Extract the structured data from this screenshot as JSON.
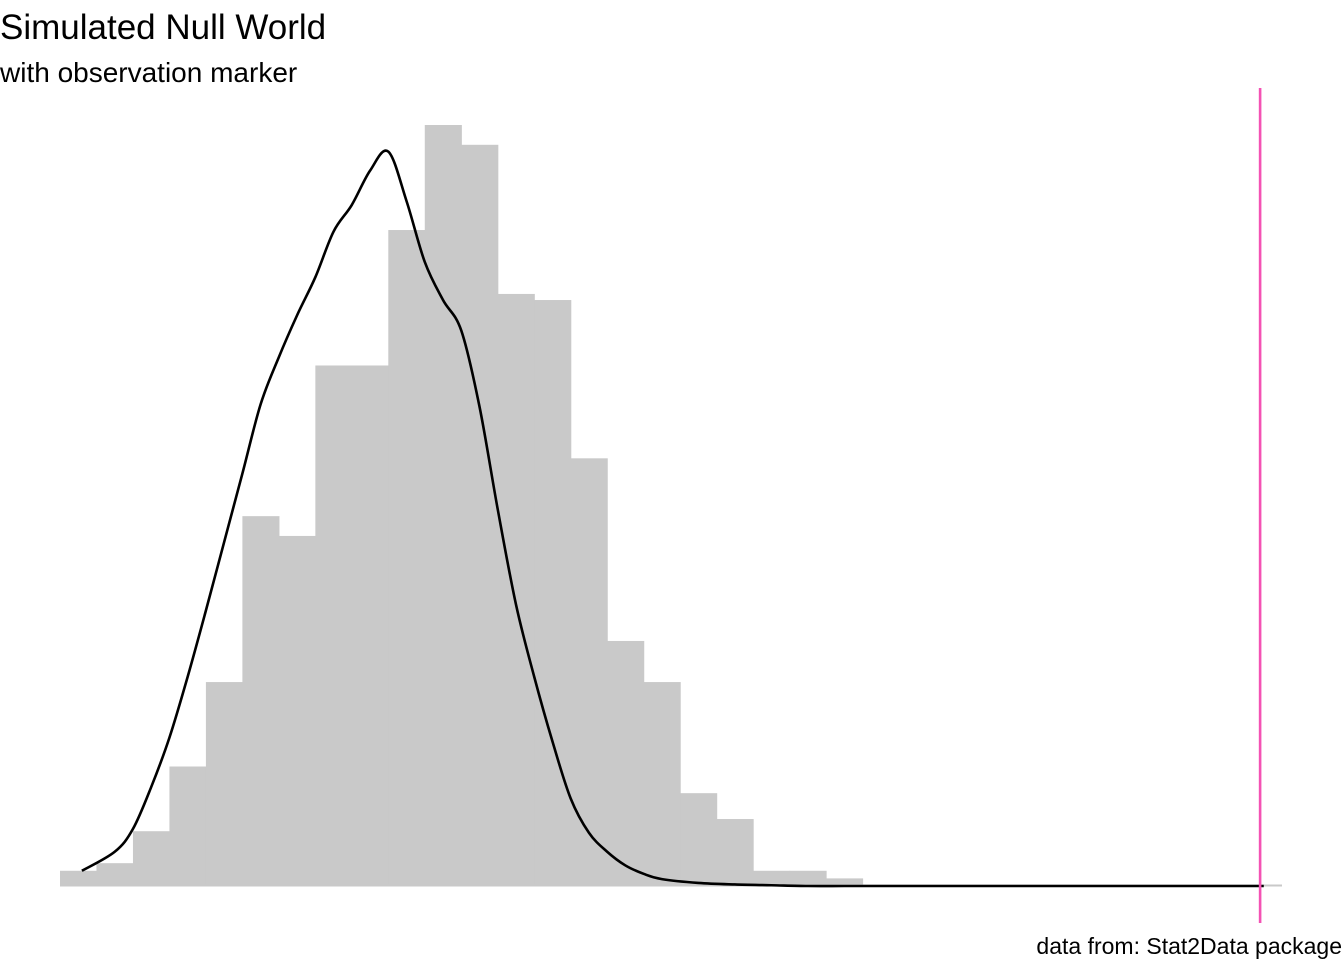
{
  "chart_data": {
    "type": "histogram",
    "title": "Simulated Null World",
    "subtitle": "with observation marker",
    "caption": "data from: Stat2Data package",
    "xlim": [
      -0.065,
      0.27
    ],
    "ylim": [
      0,
      1.0
    ],
    "grid": false,
    "axes_visible": false,
    "bin_width": 0.01,
    "histogram": {
      "bin_edges": [
        -0.065,
        -0.055,
        -0.045,
        -0.035,
        -0.025,
        -0.015,
        -0.005,
        0.005,
        0.015,
        0.025,
        0.035,
        0.045,
        0.055,
        0.065,
        0.075,
        0.085,
        0.095,
        0.105,
        0.115,
        0.125,
        0.135,
        0.145,
        0.155,
        0.165,
        0.175,
        0.185,
        0.195,
        0.205,
        0.215,
        0.225,
        0.235,
        0.245,
        0.255,
        0.265
      ],
      "heights": [
        0.02,
        0.03,
        0.072,
        0.157,
        0.268,
        0.486,
        0.46,
        0.684,
        0.684,
        0.862,
        1.0,
        0.974,
        0.778,
        0.77,
        0.562,
        0.322,
        0.268,
        0.122,
        0.088,
        0.02,
        0.02,
        0.01,
        0.0,
        0.0,
        0.0,
        0.0,
        0.0,
        0.0,
        0.0,
        0.0,
        0.0,
        0.0,
        0.0
      ]
    },
    "density_curve": {
      "x": [
        -0.059,
        -0.05,
        -0.045,
        -0.04,
        -0.035,
        -0.03,
        -0.025,
        -0.02,
        -0.015,
        -0.01,
        -0.005,
        0.0,
        0.005,
        0.01,
        0.015,
        0.02,
        0.025,
        0.03,
        0.035,
        0.04,
        0.045,
        0.05,
        0.055,
        0.06,
        0.065,
        0.07,
        0.075,
        0.08,
        0.085,
        0.09,
        0.095,
        0.1,
        0.11,
        0.12,
        0.13,
        0.14,
        0.15,
        0.16,
        0.18,
        0.2,
        0.22,
        0.24,
        0.265
      ],
      "y": [
        0.02,
        0.045,
        0.075,
        0.13,
        0.195,
        0.275,
        0.362,
        0.452,
        0.542,
        0.633,
        0.695,
        0.75,
        0.8,
        0.86,
        0.895,
        0.94,
        0.965,
        0.9,
        0.82,
        0.77,
        0.73,
        0.63,
        0.495,
        0.37,
        0.275,
        0.19,
        0.115,
        0.07,
        0.045,
        0.027,
        0.016,
        0.009,
        0.004,
        0.002,
        0.001,
        0.0,
        0.0,
        0.0,
        0.0,
        0.0,
        0.0,
        0.0,
        0.0
      ]
    },
    "observation_marker": {
      "x": 0.264,
      "color": "#f452b4"
    },
    "colors": {
      "bars": "#c9c9c9",
      "curve": "#000000",
      "baseline": "#c9c9c9"
    }
  }
}
